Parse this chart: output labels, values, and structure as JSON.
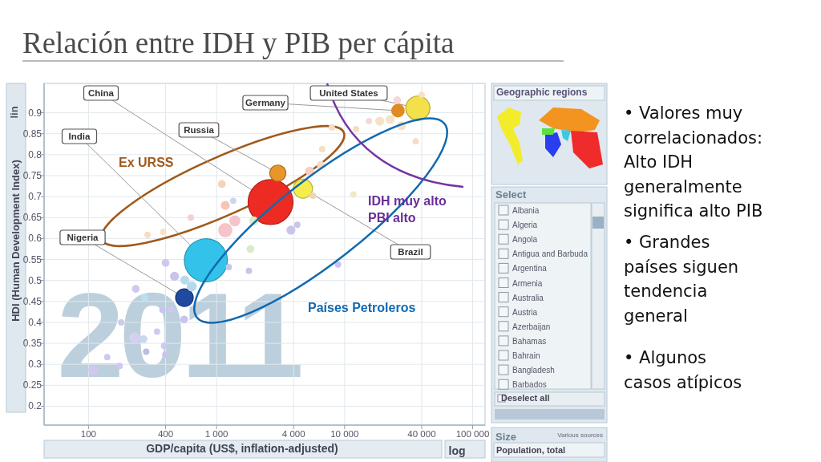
{
  "chart_data": {
    "type": "bubble",
    "title": "Relación entre IDH y PIB per cápita",
    "xlabel": "GDP/capita (US$, inflation-adjusted)",
    "ylabel": "HDI (Human Development Index)",
    "log": "x",
    "grid": true,
    "marker": "circle",
    "xlim": [
      45,
      125000
    ],
    "xticks": [
      100,
      400,
      {
        "value": 1000,
        "label": "1 000"
      },
      {
        "value": 4000,
        "label": "4 000"
      },
      {
        "value": 10000,
        "label": "10 000"
      },
      {
        "value": 40000,
        "label": "40 000"
      },
      {
        "value": 100000,
        "label": "100 000"
      }
    ],
    "ylim": [
      0.155,
      0.97
    ],
    "yticks": [
      0.2,
      0.25,
      0.3,
      0.35,
      0.4,
      0.45,
      0.5,
      0.55,
      0.6,
      0.65,
      0.7,
      0.75,
      0.8,
      0.85,
      0.9
    ],
    "series": [
      {
        "x": [
          109,
          140,
          175,
          180,
          229,
          269,
          282,
          398,
          389,
          343,
          234,
          275,
          378,
          441,
          558,
          400,
          470,
          565,
          640,
          1245,
          1790,
          1840,
          1170,
          1390,
          1100,
          1350,
          1950,
          3810,
          4270,
          5660,
          5330,
          6500,
          6680,
          7940,
          11700,
          8880,
          15500,
          18800,
          22700,
          27800,
          12300,
          35900,
          40000,
          25800,
          289,
          383,
          630,
          1170,
          2640,
          825,
          37300,
          26100,
          3010,
          4730,
          561
        ],
        "values": [
          0.286,
          0.317,
          0.296,
          0.4,
          0.363,
          0.36,
          0.33,
          0.323,
          0.344,
          0.378,
          0.48,
          0.459,
          0.43,
          0.43,
          0.407,
          0.542,
          0.51,
          0.501,
          0.486,
          0.532,
          0.523,
          0.575,
          0.62,
          0.642,
          0.73,
          0.69,
          0.642,
          0.62,
          0.633,
          0.702,
          0.761,
          0.776,
          0.813,
          0.865,
          0.705,
          0.538,
          0.88,
          0.88,
          0.884,
          0.869,
          0.861,
          0.832,
          0.943,
          0.93,
          0.609,
          0.616,
          0.65,
          0.679,
          0.687,
          0.548,
          0.911,
          0.905,
          0.756,
          0.719,
          0.459
        ],
        "sizes": [
          0.05,
          0.02,
          0.02,
          0.02,
          0.06,
          0.03,
          0.02,
          0.02,
          0.02,
          0.02,
          0.03,
          0.03,
          0.02,
          0.02,
          0.03,
          0.03,
          0.04,
          0.04,
          0.05,
          0.02,
          0.02,
          0.03,
          0.1,
          0.06,
          0.03,
          0.02,
          0.04,
          0.04,
          0.02,
          0.02,
          0.04,
          0.03,
          0.02,
          0.02,
          0.02,
          0.02,
          0.02,
          0.04,
          0.04,
          0.04,
          0.02,
          0.02,
          0.02,
          0.03,
          0.02,
          0.02,
          0.02,
          0.04,
          1,
          0.92,
          0.29,
          0.09,
          0.13,
          0.18,
          0.155
        ],
        "colors": [
          "#cfc8ef",
          "#cfc8ef",
          "#cfc8ef",
          "#cfc8ef",
          "#d6d0f0",
          "#c8d8ee",
          "#b8bfe0",
          "#c8c4ec",
          "#cfc8ef",
          "#cfc8ef",
          "#cfc8ef",
          "#b9e0ee",
          "#c8c4ec",
          "#cfc8ef",
          "#c8c4ec",
          "#cfc8ef",
          "#c8c4ec",
          "#b8d8ee",
          "#b8d8ee",
          "#c8c4ec",
          "#c8c4ec",
          "#d8ecc8",
          "#f4c4c8",
          "#f4c4c8",
          "#f2d4b8",
          "#c8d8ee",
          "#d8ecc8",
          "#c8c4ec",
          "#c8c4ec",
          "#f4d2b8",
          "#f6cfc0",
          "#f6dcc4",
          "#f6e0c0",
          "#f6dcc4",
          "#f0e8c8",
          "#c8c4ec",
          "#f6d8d8",
          "#f6e2c8",
          "#f6e2c8",
          "#f6e2c8",
          "#f6dcc4",
          "#f6dcc4",
          "#f6e2c8",
          "#f6d8d8",
          "#f6dcc4",
          "#f6e2c8",
          "#f6d0d0",
          "#f6c4b8",
          "#ee2b22",
          "#33c3ea",
          "#f3e04a",
          "#e08a20",
          "#e8962a",
          "#f4ed50",
          "#1f4aa0"
        ]
      }
    ],
    "annotations": [
      "Ex URSS",
      "IDH muy alto\nPBI alto",
      "Países Petroleros",
      "2011",
      "lin",
      "log",
      "Geographic regions",
      "Select",
      "Albania\nAlgeria\nAngola\nAntigua and Barbuda\nArgentina\nArmenia\nAustralia\nAustria\nAzerbaijan\nBahamas\nBahrain\nBangladesh\nBarbados",
      "Deselect all",
      "Size",
      "Various sources",
      "Population, total",
      "• Valores muy\ncorrelacionados:\nAlto IDH\ngeneralmente\nsignifica alto PIB",
      "• Grandes\npaíses siguen\ntendencia\ngeneral",
      "• Algunos\ncasos atípicos",
      {
        "text": "China",
        "x": 2640,
        "y": 0.687
      },
      {
        "text": "India",
        "x": 825,
        "y": 0.548
      },
      {
        "text": "Russia",
        "x": 3010,
        "y": 0.756
      },
      {
        "text": "Nigeria",
        "x": 561,
        "y": 0.459
      },
      {
        "text": "Germany",
        "x": 26100,
        "y": 0.905
      },
      {
        "text": "United States",
        "x": 37300,
        "y": 0.911
      },
      {
        "text": "Brazil",
        "x": 4730,
        "y": 0.719
      }
    ]
  }
}
